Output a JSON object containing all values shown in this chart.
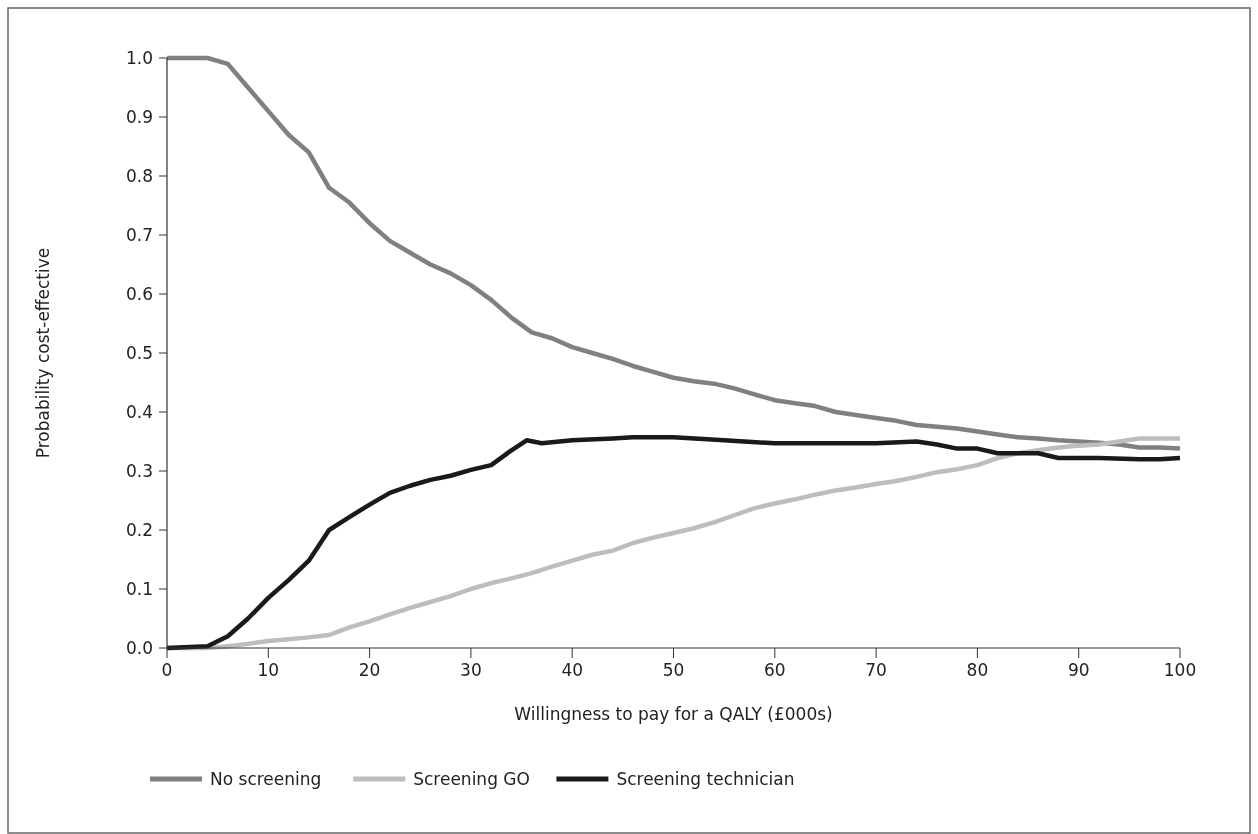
{
  "chart_data": {
    "type": "line",
    "xlabel": "Willingness to pay for a QALY (£000s)",
    "ylabel": "Probability cost-effective",
    "xlim": [
      0,
      100
    ],
    "xticks": [
      0,
      10,
      20,
      30,
      40,
      50,
      60,
      70,
      80,
      90,
      100
    ],
    "ylim": [
      0,
      1
    ],
    "yticks": [
      {
        "value": 0,
        "label": "0.0"
      },
      {
        "value": 0.1,
        "label": "0.1"
      },
      {
        "value": 0.2,
        "label": "0.2"
      },
      {
        "value": 0.3,
        "label": "0.3"
      },
      {
        "value": 0.4,
        "label": "0.4"
      },
      {
        "value": 0.5,
        "label": "0.5"
      },
      {
        "value": 0.6,
        "label": "0.6"
      },
      {
        "value": 0.7,
        "label": "0.7"
      },
      {
        "value": 0.8,
        "label": "0.8"
      },
      {
        "value": 0.9,
        "label": "0.9"
      },
      {
        "value": 1,
        "label": "1.0"
      }
    ],
    "grid": false,
    "legend": "bottom",
    "marker": "none",
    "line_style": "solid",
    "series": [
      {
        "name": "No screening",
        "color": "#808080",
        "x": [
          0,
          4,
          6,
          8,
          10,
          12,
          14,
          16,
          18,
          20,
          22,
          24,
          26,
          28,
          30,
          32,
          34,
          36,
          38,
          40,
          42,
          44,
          46,
          48,
          50,
          52,
          54,
          56,
          58,
          60,
          62,
          64,
          66,
          68,
          70,
          72,
          74,
          76,
          78,
          80,
          82,
          84,
          86,
          88,
          90,
          92,
          94,
          96,
          98,
          100
        ],
        "values": [
          1.0,
          1.0,
          0.99,
          0.95,
          0.91,
          0.87,
          0.84,
          0.78,
          0.755,
          0.72,
          0.69,
          0.67,
          0.65,
          0.635,
          0.615,
          0.59,
          0.56,
          0.535,
          0.525,
          0.51,
          0.5,
          0.49,
          0.478,
          0.468,
          0.458,
          0.452,
          0.448,
          0.44,
          0.43,
          0.42,
          0.415,
          0.41,
          0.4,
          0.395,
          0.39,
          0.385,
          0.378,
          0.375,
          0.372,
          0.367,
          0.362,
          0.357,
          0.355,
          0.352,
          0.35,
          0.348,
          0.345,
          0.34,
          0.34,
          0.338
        ]
      },
      {
        "name": "Screening GO",
        "color": "#bdbdbd",
        "x": [
          0,
          4,
          6,
          8,
          10,
          12,
          14,
          16,
          18,
          20,
          22,
          24,
          26,
          28,
          30,
          32,
          34,
          36,
          38,
          40,
          42,
          44,
          46,
          48,
          50,
          52,
          54,
          56,
          58,
          60,
          62,
          64,
          66,
          68,
          70,
          72,
          74,
          76,
          78,
          80,
          82,
          84,
          86,
          88,
          90,
          92,
          94,
          96,
          98,
          100
        ],
        "values": [
          0,
          0,
          0.003,
          0.007,
          0.012,
          0.015,
          0.018,
          0.022,
          0.035,
          0.045,
          0.057,
          0.068,
          0.078,
          0.088,
          0.1,
          0.11,
          0.118,
          0.127,
          0.138,
          0.148,
          0.158,
          0.165,
          0.178,
          0.187,
          0.195,
          0.203,
          0.213,
          0.225,
          0.237,
          0.245,
          0.252,
          0.26,
          0.267,
          0.272,
          0.278,
          0.283,
          0.29,
          0.298,
          0.303,
          0.31,
          0.322,
          0.33,
          0.335,
          0.34,
          0.343,
          0.345,
          0.35,
          0.355,
          0.355,
          0.355
        ]
      },
      {
        "name": "Screening technician",
        "color": "#1a1a1a",
        "x": [
          0,
          4,
          6,
          8,
          10,
          12,
          14,
          16,
          18,
          20,
          22,
          24,
          26,
          28,
          30,
          32,
          34,
          35.5,
          37,
          40,
          44,
          46,
          50,
          55,
          60,
          65,
          70,
          74,
          76,
          78,
          80,
          82,
          86,
          88,
          92,
          96,
          98,
          100
        ],
        "values": [
          0,
          0.003,
          0.02,
          0.05,
          0.085,
          0.115,
          0.148,
          0.2,
          0.222,
          0.243,
          0.263,
          0.275,
          0.285,
          0.292,
          0.302,
          0.31,
          0.335,
          0.352,
          0.347,
          0.352,
          0.355,
          0.357,
          0.357,
          0.352,
          0.347,
          0.347,
          0.347,
          0.35,
          0.345,
          0.338,
          0.338,
          0.33,
          0.33,
          0.322,
          0.322,
          0.32,
          0.32,
          0.322
        ]
      }
    ]
  }
}
